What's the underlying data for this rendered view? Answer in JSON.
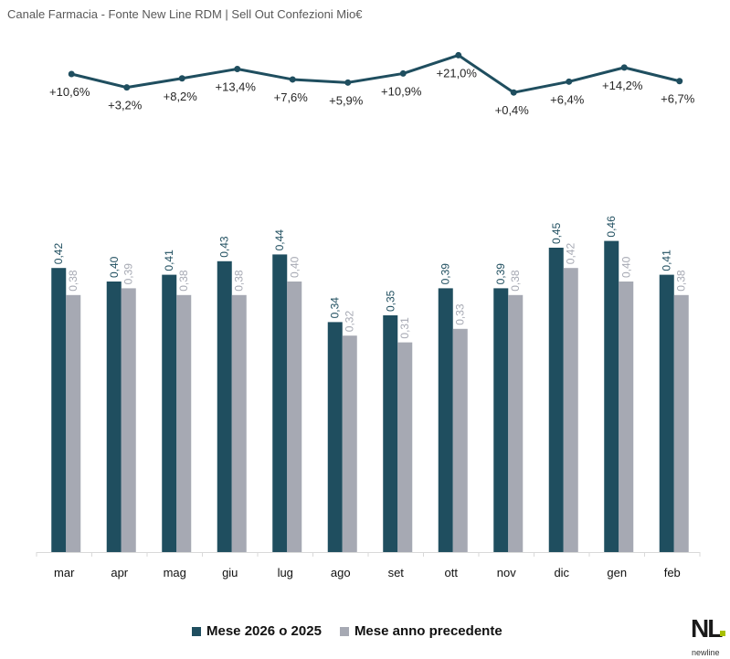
{
  "title": "Canale Farmacia - Fonte New Line RDM | Sell Out Confezioni Mio€",
  "logo": {
    "text": "NL",
    "subtext": "newline",
    "accent": "#a8c000"
  },
  "chart_data": [
    {
      "type": "line",
      "categories": [
        "mar",
        "apr",
        "mag",
        "giu",
        "lug",
        "ago",
        "set",
        "ott",
        "nov",
        "dic",
        "gen",
        "feb"
      ],
      "values": [
        10.6,
        3.2,
        8.2,
        13.4,
        7.6,
        5.9,
        10.9,
        21.0,
        0.4,
        6.4,
        14.2,
        6.7
      ],
      "labels": [
        "+10,6%",
        "+3,2%",
        "+8,2%",
        "+13,4%",
        "+7,6%",
        "+5,9%",
        "+10,9%",
        "+21,0%",
        "+0,4%",
        "+6,4%",
        "+14,2%",
        "+6,7%"
      ],
      "color": "#1f4e5f"
    },
    {
      "type": "bar",
      "categories": [
        "mar",
        "apr",
        "mag",
        "giu",
        "lug",
        "ago",
        "set",
        "ott",
        "nov",
        "dic",
        "gen",
        "feb"
      ],
      "series": [
        {
          "name": "Mese 2026 o 2025",
          "color": "#1f4e5f",
          "values": [
            0.42,
            0.4,
            0.41,
            0.43,
            0.44,
            0.34,
            0.35,
            0.39,
            0.39,
            0.45,
            0.46,
            0.41
          ],
          "labels": [
            "0,42",
            "0,40",
            "0,41",
            "0,43",
            "0,44",
            "0,34",
            "0,35",
            "0,39",
            "0,39",
            "0,45",
            "0,46",
            "0,41"
          ]
        },
        {
          "name": "Mese anno precedente",
          "color": "#a6a9b3",
          "values": [
            0.38,
            0.39,
            0.38,
            0.38,
            0.4,
            0.32,
            0.31,
            0.33,
            0.38,
            0.42,
            0.4,
            0.38
          ],
          "labels": [
            "0,38",
            "0,39",
            "0,38",
            "0,38",
            "0,40",
            "0,32",
            "0,31",
            "0,33",
            "0,38",
            "0,42",
            "0,40",
            "0,38"
          ]
        }
      ],
      "legend": "bottom",
      "grid": false
    }
  ]
}
